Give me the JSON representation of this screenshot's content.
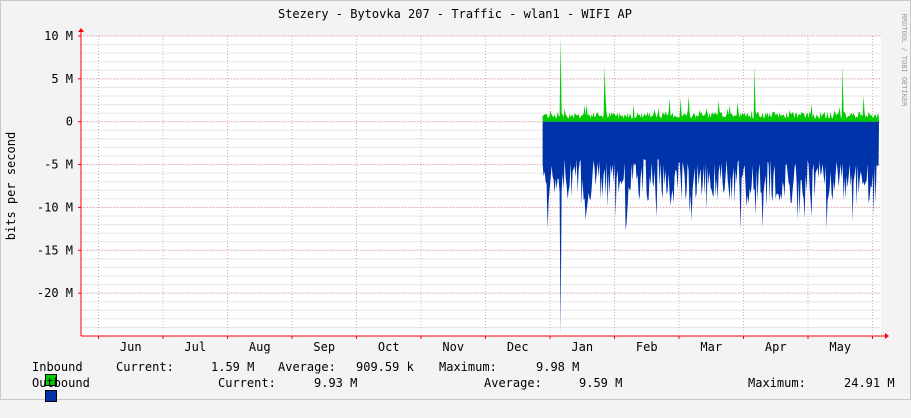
{
  "chart_data": {
    "type": "area",
    "title": "Stezery - Bytovka 207 - Traffic - wlan1 - WIFI AP",
    "ylabel": "bits per second",
    "watermark": "RRDTOOL / TOBI OETIKER",
    "ylim": [
      -25000000,
      10000000
    ],
    "y_ticks": [
      {
        "value": 10000000,
        "label": "10 M"
      },
      {
        "value": 5000000,
        "label": "5 M"
      },
      {
        "value": 0,
        "label": "0"
      },
      {
        "value": -5000000,
        "label": "-5 M"
      },
      {
        "value": -10000000,
        "label": "-10 M"
      },
      {
        "value": -15000000,
        "label": "-15 M"
      },
      {
        "value": -20000000,
        "label": "-20 M"
      }
    ],
    "x_months": [
      "Jun",
      "Jul",
      "Aug",
      "Sep",
      "Oct",
      "Nov",
      "Dec",
      "Jan",
      "Feb",
      "Mar",
      "Apr",
      "May"
    ],
    "data_start_fraction": 0.577,
    "series": [
      {
        "name": "Inbound",
        "color": "#00cc00",
        "current": "1.59 M",
        "average": "909.59 k",
        "maximum": "9.98 M",
        "typical_value": 900000,
        "max_value": 9980000
      },
      {
        "name": "Outbound",
        "color": "#0033aa",
        "current": "9.93 M",
        "average": "9.59 M",
        "maximum": "24.91 M",
        "typical_value": -9590000,
        "max_value": -24910000
      }
    ],
    "grid": true,
    "legend_position": "bottom-left"
  },
  "legend": {
    "current_label": "Current:",
    "average_label": "Average:",
    "maximum_label": "Maximum:"
  }
}
